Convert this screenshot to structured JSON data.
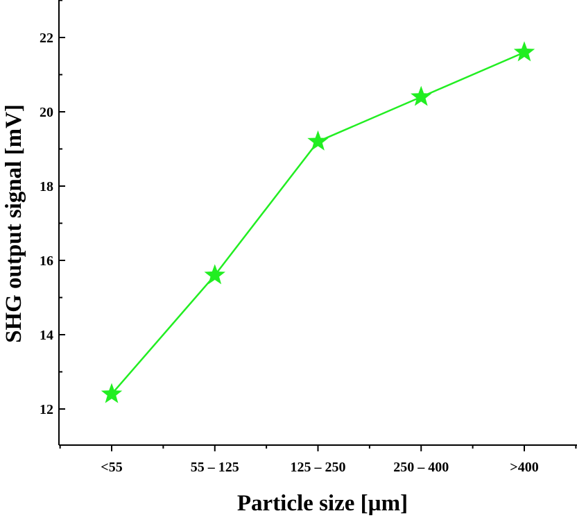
{
  "chart_data": {
    "type": "line",
    "title": "",
    "xlabel": "Particle size [µm]",
    "ylabel": "SHG output signal [mV]",
    "categories": [
      "<55",
      "55 – 125",
      "125 – 250",
      "250 – 400",
      ">400"
    ],
    "series": [
      {
        "values": [
          12.4,
          15.6,
          19.2,
          20.4,
          21.6
        ],
        "color": "#22ee22",
        "marker": "star"
      }
    ],
    "ylim": [
      11.0,
      23.0
    ],
    "yticks": [
      12,
      14,
      16,
      18,
      20,
      22
    ],
    "grid": false,
    "legend": "none"
  }
}
